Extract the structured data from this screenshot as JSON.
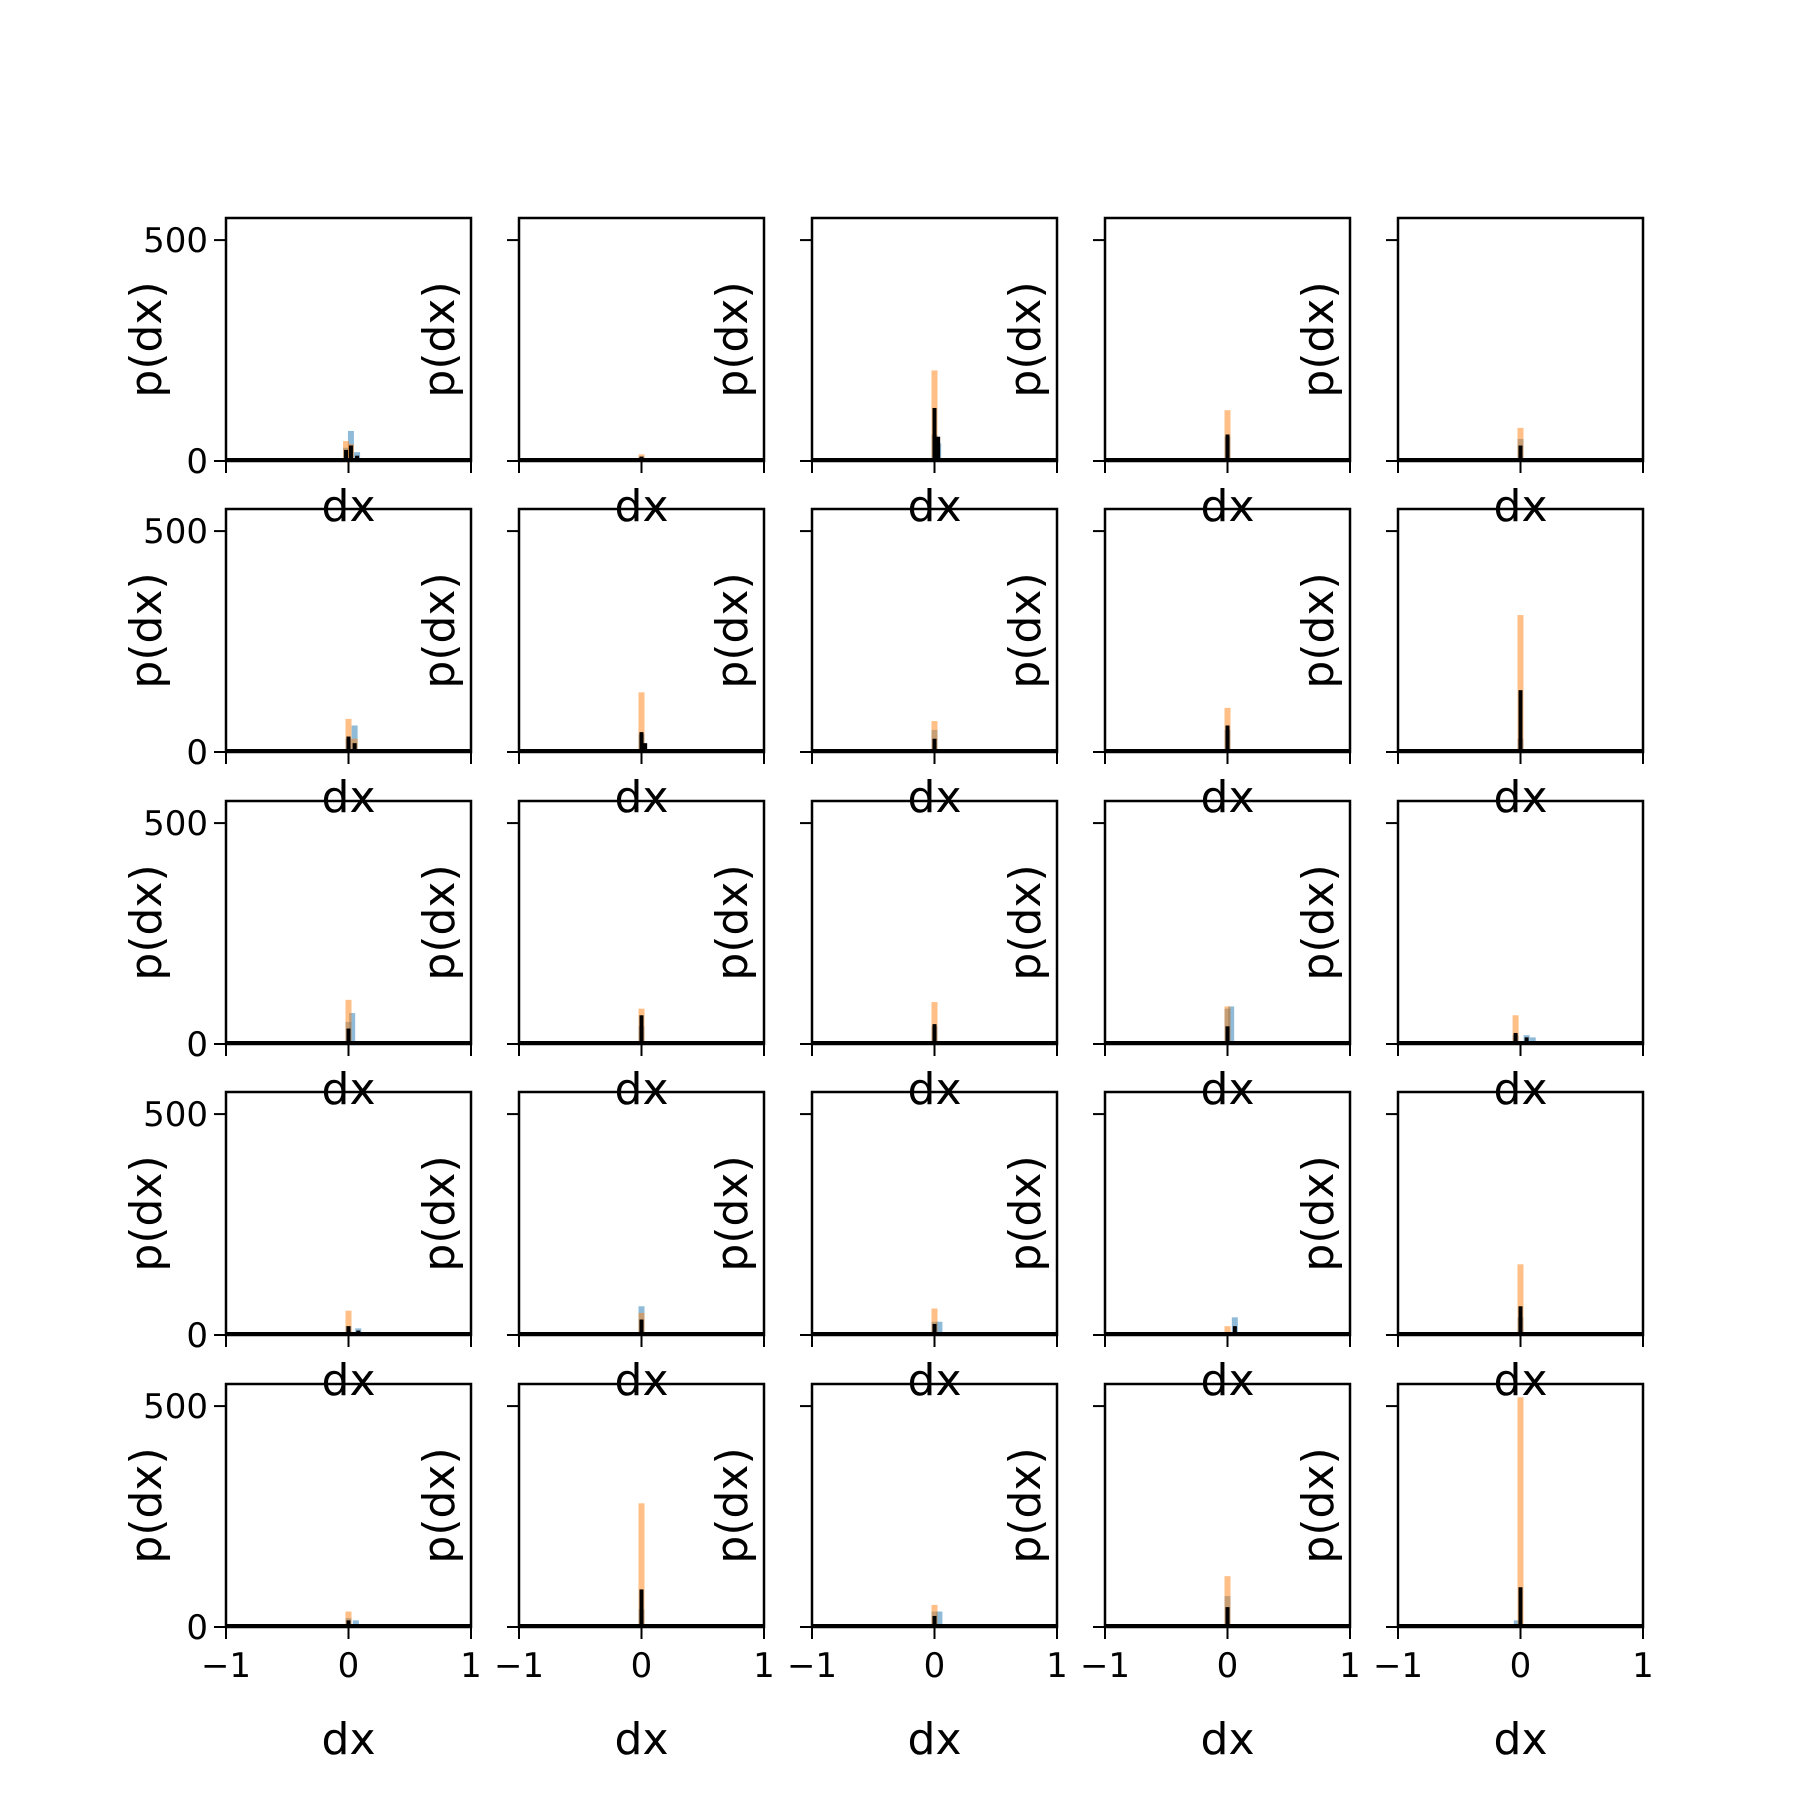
{
  "chart_data": {
    "type": "bar",
    "layout": {
      "rows": 5,
      "cols": 5
    },
    "xlim": [
      -1,
      1
    ],
    "ylim": [
      0,
      550
    ],
    "xticks": [
      -1,
      0,
      1
    ],
    "xtick_labels": [
      "−1",
      "0",
      "1"
    ],
    "yticks": [
      0,
      500
    ],
    "ytick_labels": [
      "0",
      "500"
    ],
    "xlabel": "dx",
    "ylabel": "p(dx)",
    "grid": false,
    "colors": {
      "series_blue": "#1f77b4",
      "series_orange": "#ff7f0e",
      "series_black": "#000000",
      "axes": "#000000"
    },
    "subplots": [
      {
        "id": "r1c1",
        "blue": [
          [
            -0.02,
            30
          ],
          [
            0.02,
            68
          ],
          [
            0.07,
            20
          ]
        ],
        "orange": [
          [
            -0.02,
            45
          ],
          [
            0.02,
            38
          ]
        ],
        "black": [
          [
            -0.02,
            25
          ],
          [
            0.02,
            35
          ],
          [
            0.07,
            12
          ]
        ]
      },
      {
        "id": "r1c2",
        "blue": [
          [
            0.0,
            10
          ]
        ],
        "orange": [
          [
            0.0,
            15
          ]
        ],
        "black": [
          [
            0.0,
            10
          ]
        ]
      },
      {
        "id": "r1c3",
        "blue": [
          [
            0.0,
            60
          ],
          [
            0.03,
            40
          ]
        ],
        "orange": [
          [
            0.0,
            205
          ]
        ],
        "black": [
          [
            0.0,
            120
          ],
          [
            0.03,
            55
          ]
        ]
      },
      {
        "id": "r1c4",
        "blue": [
          [
            0.0,
            55
          ]
        ],
        "orange": [
          [
            0.0,
            115
          ]
        ],
        "black": [
          [
            0.0,
            60
          ]
        ]
      },
      {
        "id": "r1c5",
        "blue": [
          [
            0.0,
            50
          ]
        ],
        "orange": [
          [
            0.0,
            75
          ]
        ],
        "black": [
          [
            0.0,
            35
          ]
        ]
      },
      {
        "id": "r2c1",
        "blue": [
          [
            0.0,
            30
          ],
          [
            0.05,
            60
          ]
        ],
        "orange": [
          [
            0.0,
            75
          ],
          [
            0.05,
            30
          ]
        ],
        "black": [
          [
            0.0,
            35
          ],
          [
            0.05,
            20
          ]
        ]
      },
      {
        "id": "r2c2",
        "blue": [
          [
            0.0,
            40
          ]
        ],
        "orange": [
          [
            0.0,
            135
          ]
        ],
        "black": [
          [
            0.0,
            45
          ],
          [
            0.03,
            20
          ]
        ]
      },
      {
        "id": "r2c3",
        "blue": [
          [
            0.0,
            50
          ]
        ],
        "orange": [
          [
            0.0,
            70
          ]
        ],
        "black": [
          [
            0.0,
            30
          ]
        ]
      },
      {
        "id": "r2c4",
        "blue": [
          [
            0.0,
            50
          ]
        ],
        "orange": [
          [
            0.0,
            100
          ]
        ],
        "black": [
          [
            0.0,
            60
          ]
        ]
      },
      {
        "id": "r2c5",
        "blue": [
          [
            0.0,
            30
          ]
        ],
        "orange": [
          [
            0.0,
            310
          ]
        ],
        "black": [
          [
            0.0,
            140
          ]
        ]
      },
      {
        "id": "r3c1",
        "blue": [
          [
            0.0,
            50
          ],
          [
            0.03,
            70
          ]
        ],
        "orange": [
          [
            0.0,
            100
          ]
        ],
        "black": [
          [
            0.0,
            35
          ]
        ]
      },
      {
        "id": "r3c2",
        "blue": [
          [
            0.0,
            40
          ]
        ],
        "orange": [
          [
            0.0,
            80
          ]
        ],
        "black": [
          [
            0.0,
            65
          ]
        ]
      },
      {
        "id": "r3c3",
        "blue": [
          [
            0.0,
            40
          ]
        ],
        "orange": [
          [
            0.0,
            95
          ]
        ],
        "black": [
          [
            0.0,
            45
          ]
        ]
      },
      {
        "id": "r3c4",
        "blue": [
          [
            0.0,
            80
          ],
          [
            0.03,
            85
          ]
        ],
        "orange": [
          [
            0.0,
            85
          ]
        ],
        "black": [
          [
            0.0,
            40
          ]
        ]
      },
      {
        "id": "r3c5",
        "blue": [
          [
            -0.04,
            20
          ],
          [
            0.05,
            20
          ],
          [
            0.1,
            15
          ]
        ],
        "orange": [
          [
            -0.04,
            65
          ]
        ],
        "black": [
          [
            -0.04,
            25
          ],
          [
            0.05,
            15
          ]
        ]
      },
      {
        "id": "r4c1",
        "blue": [
          [
            0.0,
            20
          ],
          [
            0.08,
            15
          ]
        ],
        "orange": [
          [
            0.0,
            55
          ]
        ],
        "black": [
          [
            0.0,
            20
          ],
          [
            0.08,
            10
          ]
        ]
      },
      {
        "id": "r4c2",
        "blue": [
          [
            0.0,
            65
          ]
        ],
        "orange": [
          [
            0.0,
            50
          ]
        ],
        "black": [
          [
            0.0,
            35
          ]
        ]
      },
      {
        "id": "r4c3",
        "blue": [
          [
            0.0,
            30
          ],
          [
            0.04,
            30
          ]
        ],
        "orange": [
          [
            0.0,
            60
          ]
        ],
        "black": [
          [
            0.0,
            25
          ]
        ]
      },
      {
        "id": "r4c4",
        "blue": [
          [
            0.06,
            40
          ]
        ],
        "orange": [
          [
            0.0,
            20
          ]
        ],
        "black": [
          [
            0.06,
            20
          ]
        ]
      },
      {
        "id": "r4c5",
        "blue": [
          [
            0.0,
            40
          ]
        ],
        "orange": [
          [
            0.0,
            160
          ]
        ],
        "black": [
          [
            0.0,
            65
          ]
        ]
      },
      {
        "id": "r5c1",
        "blue": [
          [
            0.0,
            20
          ],
          [
            0.06,
            15
          ]
        ],
        "orange": [
          [
            0.0,
            35
          ]
        ],
        "black": [
          [
            0.0,
            15
          ]
        ]
      },
      {
        "id": "r5c2",
        "blue": [
          [
            0.0,
            40
          ]
        ],
        "orange": [
          [
            0.0,
            280
          ]
        ],
        "black": [
          [
            0.0,
            85
          ]
        ]
      },
      {
        "id": "r5c3",
        "blue": [
          [
            0.0,
            35
          ],
          [
            0.04,
            35
          ]
        ],
        "orange": [
          [
            0.0,
            50
          ]
        ],
        "black": [
          [
            0.0,
            25
          ]
        ]
      },
      {
        "id": "r5c4",
        "blue": [
          [
            0.0,
            70
          ]
        ],
        "orange": [
          [
            0.0,
            115
          ]
        ],
        "black": [
          [
            0.0,
            45
          ]
        ]
      },
      {
        "id": "r5c5",
        "blue": [
          [
            -0.03,
            15
          ]
        ],
        "orange": [
          [
            0.0,
            520
          ]
        ],
        "black": [
          [
            0.0,
            90
          ]
        ]
      }
    ]
  }
}
